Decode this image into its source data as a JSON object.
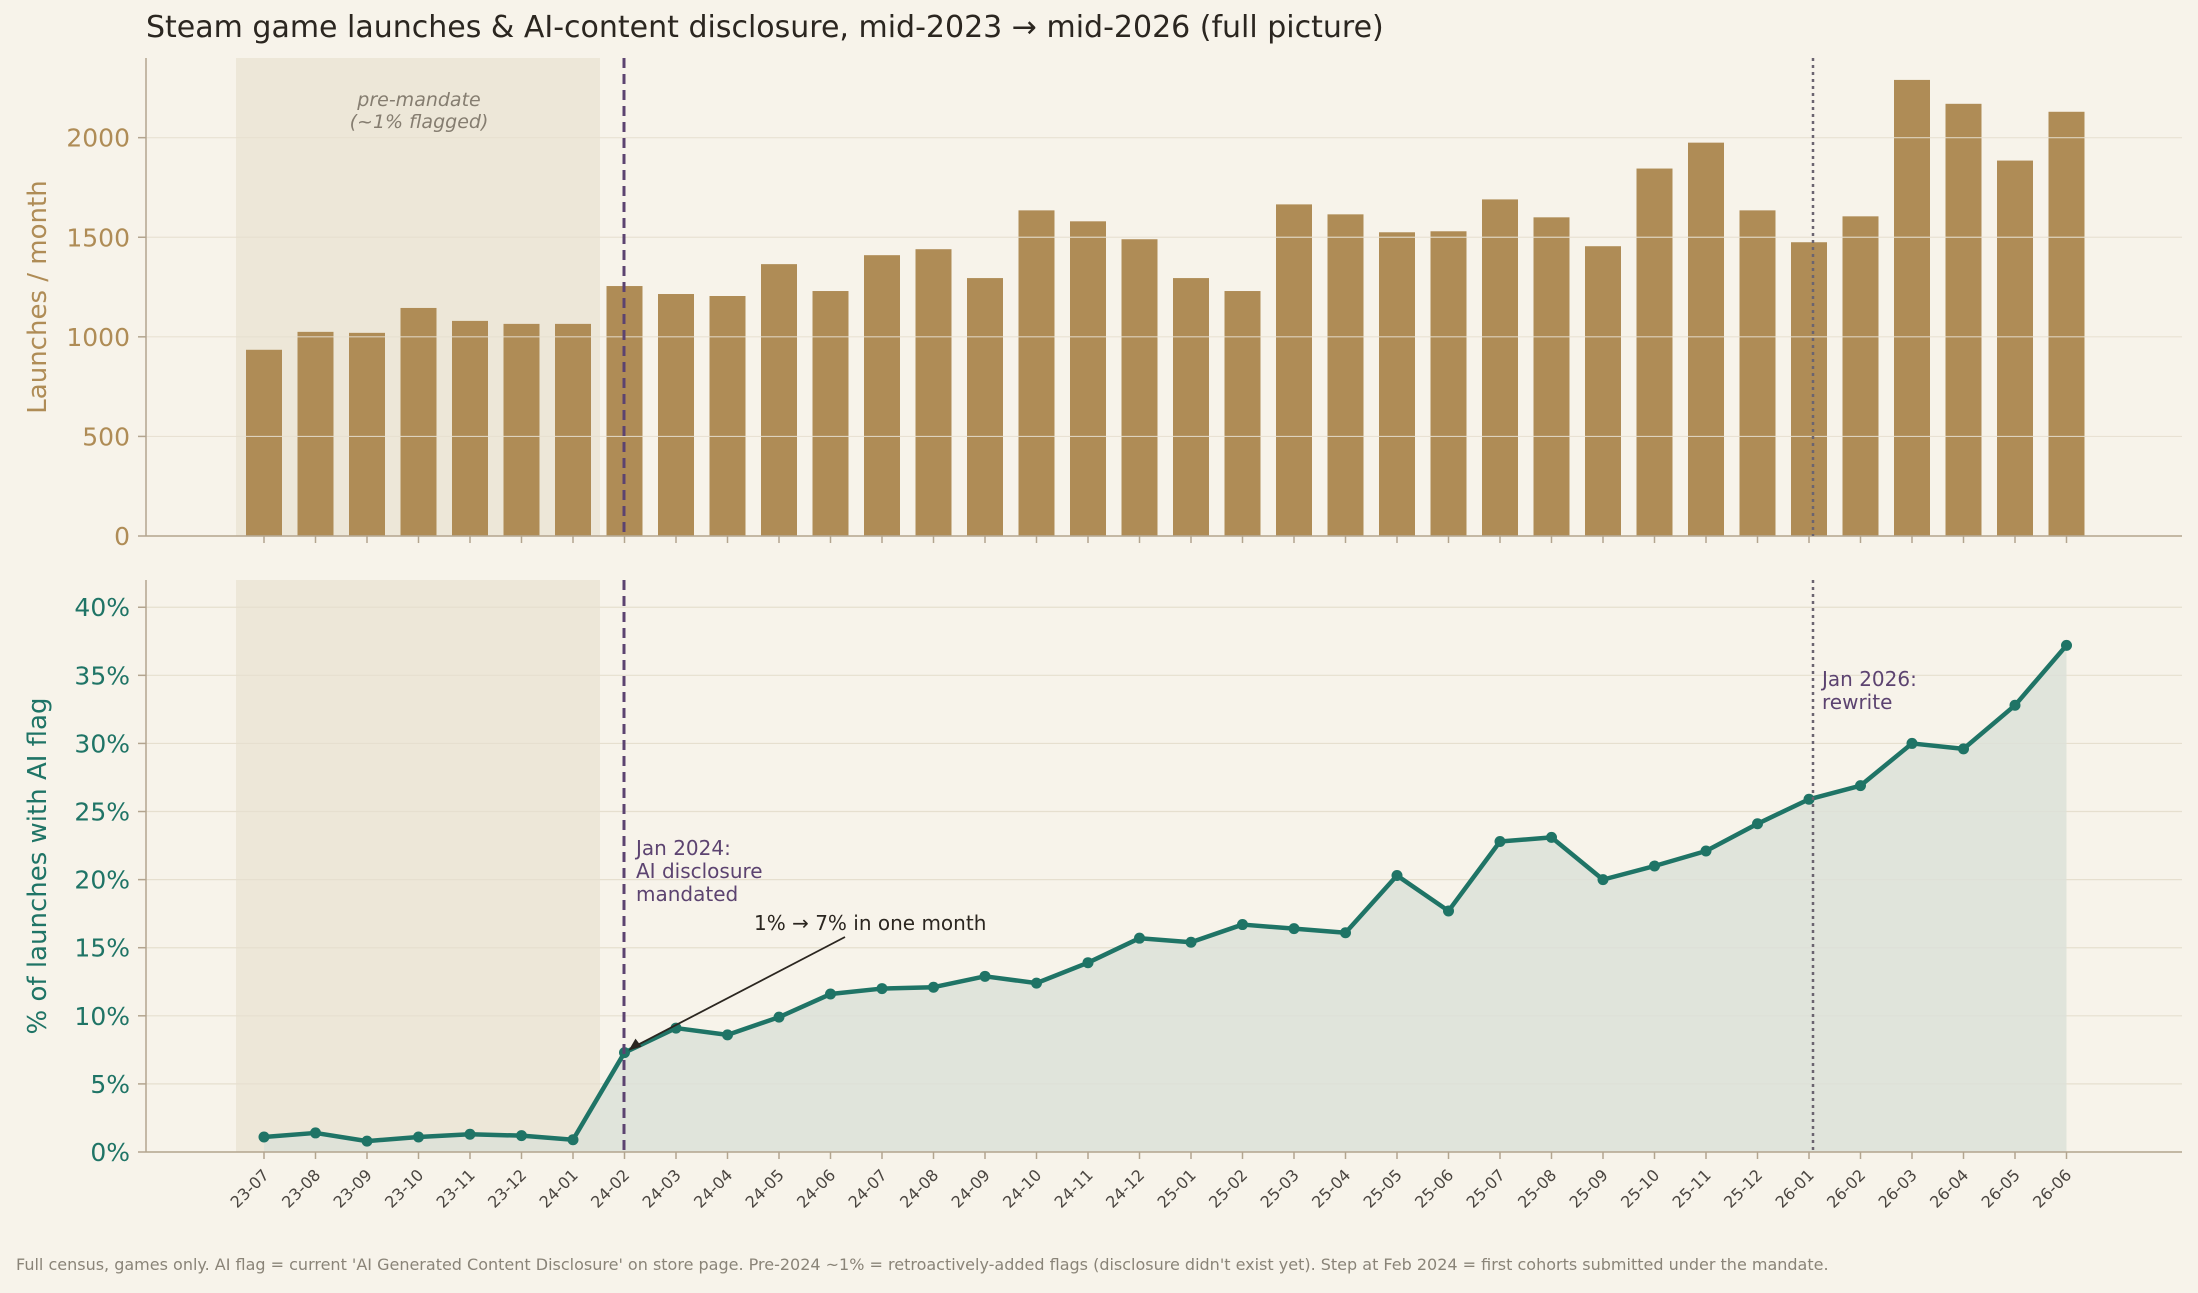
{
  "title": "Steam game launches & AI-content disclosure, mid-2023 → mid-2026 (full picture)",
  "footnote": "Full census, games only. AI flag = current 'AI Generated Content Disclosure' on store page. Pre-2024 ~1% = retroactively-added flags (disclosure didn't exist yet). Step at Feb 2024 = first cohorts submitted under the mandate.",
  "colors": {
    "background": "#f7f3ea",
    "bars": "#af8c56",
    "line": "#1f7466",
    "area": "#dce1d8",
    "premandate_band": "#ede7d8",
    "event_line": "#5c4370",
    "rewrite_line": "#6b6470",
    "grid": "#e6dfcf",
    "axis": "#b3a58f"
  },
  "annotations": {
    "premandate_label_1": "pre-mandate",
    "premandate_label_2": "(~1% flagged)",
    "mandate_1": "Jan 2024:",
    "mandate_2": "AI disclosure",
    "mandate_3": "mandated",
    "step_note": "1% → 7% in one month",
    "rewrite_1": "Jan 2026:",
    "rewrite_2": "rewrite"
  },
  "chart_data": [
    {
      "type": "bar",
      "ylabel": "Launches / month",
      "ylim": [
        0,
        2400
      ],
      "yticks": [
        0,
        500,
        1000,
        1500,
        2000
      ],
      "grid": true,
      "categories": [
        "23-07",
        "23-08",
        "23-09",
        "23-10",
        "23-11",
        "23-12",
        "24-01",
        "24-02",
        "24-03",
        "24-04",
        "24-05",
        "24-06",
        "24-07",
        "24-08",
        "24-09",
        "24-10",
        "24-11",
        "24-12",
        "25-01",
        "25-02",
        "25-03",
        "25-04",
        "25-05",
        "25-06",
        "25-07",
        "25-08",
        "25-09",
        "25-10",
        "25-11",
        "25-12",
        "26-01",
        "26-02",
        "26-03",
        "26-04",
        "26-05",
        "26-06"
      ],
      "values": [
        935,
        1025,
        1020,
        1145,
        1080,
        1065,
        1065,
        1255,
        1215,
        1205,
        1365,
        1230,
        1410,
        1440,
        1295,
        1635,
        1580,
        1490,
        1295,
        1230,
        1665,
        1615,
        1525,
        1530,
        1690,
        1600,
        1455,
        1845,
        1975,
        1635,
        1475,
        1605,
        2290,
        2170,
        1885,
        2130
      ]
    },
    {
      "type": "line",
      "ylabel": "% of launches with AI flag",
      "ylim": [
        0,
        42
      ],
      "yticks": [
        "0%",
        "5%",
        "10%",
        "15%",
        "20%",
        "25%",
        "30%",
        "35%",
        "40%"
      ],
      "grid": true,
      "x": [
        "23-07",
        "23-08",
        "23-09",
        "23-10",
        "23-11",
        "23-12",
        "24-01",
        "24-02",
        "24-03",
        "24-04",
        "24-05",
        "24-06",
        "24-07",
        "24-08",
        "24-09",
        "24-10",
        "24-11",
        "24-12",
        "25-01",
        "25-02",
        "25-03",
        "25-04",
        "25-05",
        "25-06",
        "25-07",
        "25-08",
        "25-09",
        "25-10",
        "25-11",
        "25-12",
        "26-01",
        "26-02",
        "26-03",
        "26-04",
        "26-05",
        "26-06"
      ],
      "values": [
        1.1,
        1.4,
        0.8,
        1.1,
        1.3,
        1.2,
        0.9,
        7.3,
        9.1,
        8.6,
        9.9,
        11.6,
        12.0,
        12.1,
        12.9,
        12.4,
        13.9,
        15.7,
        15.4,
        16.7,
        16.4,
        16.1,
        20.3,
        17.7,
        22.8,
        23.1,
        20.0,
        21.0,
        22.1,
        24.1,
        25.9,
        26.9,
        30.0,
        29.6,
        32.8,
        37.2
      ]
    }
  ]
}
